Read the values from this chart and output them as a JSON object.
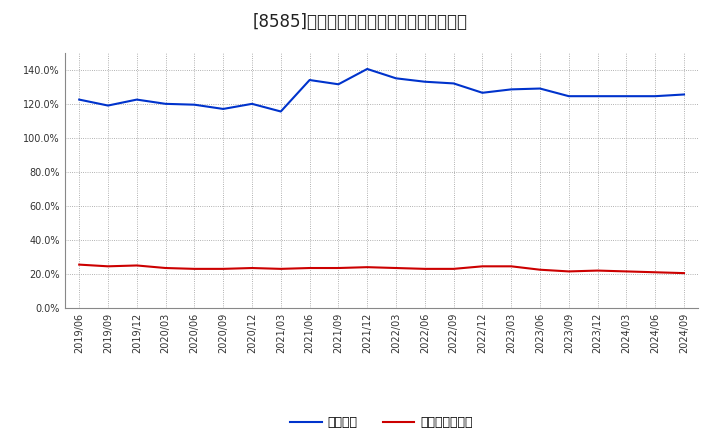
{
  "title": "[8585]　固定比率、固定長期適合率の推移",
  "x_labels": [
    "2019/06",
    "2019/09",
    "2019/12",
    "2020/03",
    "2020/06",
    "2020/09",
    "2020/12",
    "2021/03",
    "2021/06",
    "2021/09",
    "2021/12",
    "2022/03",
    "2022/06",
    "2022/09",
    "2022/12",
    "2023/03",
    "2023/06",
    "2023/09",
    "2023/12",
    "2024/03",
    "2024/06",
    "2024/09"
  ],
  "fixed_ratio": [
    122.5,
    119.0,
    122.5,
    120.0,
    119.5,
    117.0,
    120.0,
    115.5,
    134.0,
    131.5,
    140.5,
    135.0,
    133.0,
    132.0,
    126.5,
    128.5,
    129.0,
    124.5,
    124.5,
    124.5,
    124.5,
    125.5
  ],
  "fixed_longterm_ratio": [
    25.5,
    24.5,
    25.0,
    23.5,
    23.0,
    23.0,
    23.5,
    23.0,
    23.5,
    23.5,
    24.0,
    23.5,
    23.0,
    23.0,
    24.5,
    24.5,
    22.5,
    21.5,
    22.0,
    21.5,
    21.0,
    20.5
  ],
  "line_color_fixed": "#0033cc",
  "line_color_longterm": "#cc0000",
  "ylim_min": 0.0,
  "ylim_max": 150.0,
  "yticks": [
    0.0,
    20.0,
    40.0,
    60.0,
    80.0,
    100.0,
    120.0,
    140.0
  ],
  "legend_fixed": "固定比率",
  "legend_longterm": "固定長期適合率",
  "background_color": "#ffffff",
  "plot_bg_color": "#ffffff",
  "grid_color": "#999999",
  "title_fontsize": 12,
  "tick_fontsize": 7,
  "legend_fontsize": 9
}
